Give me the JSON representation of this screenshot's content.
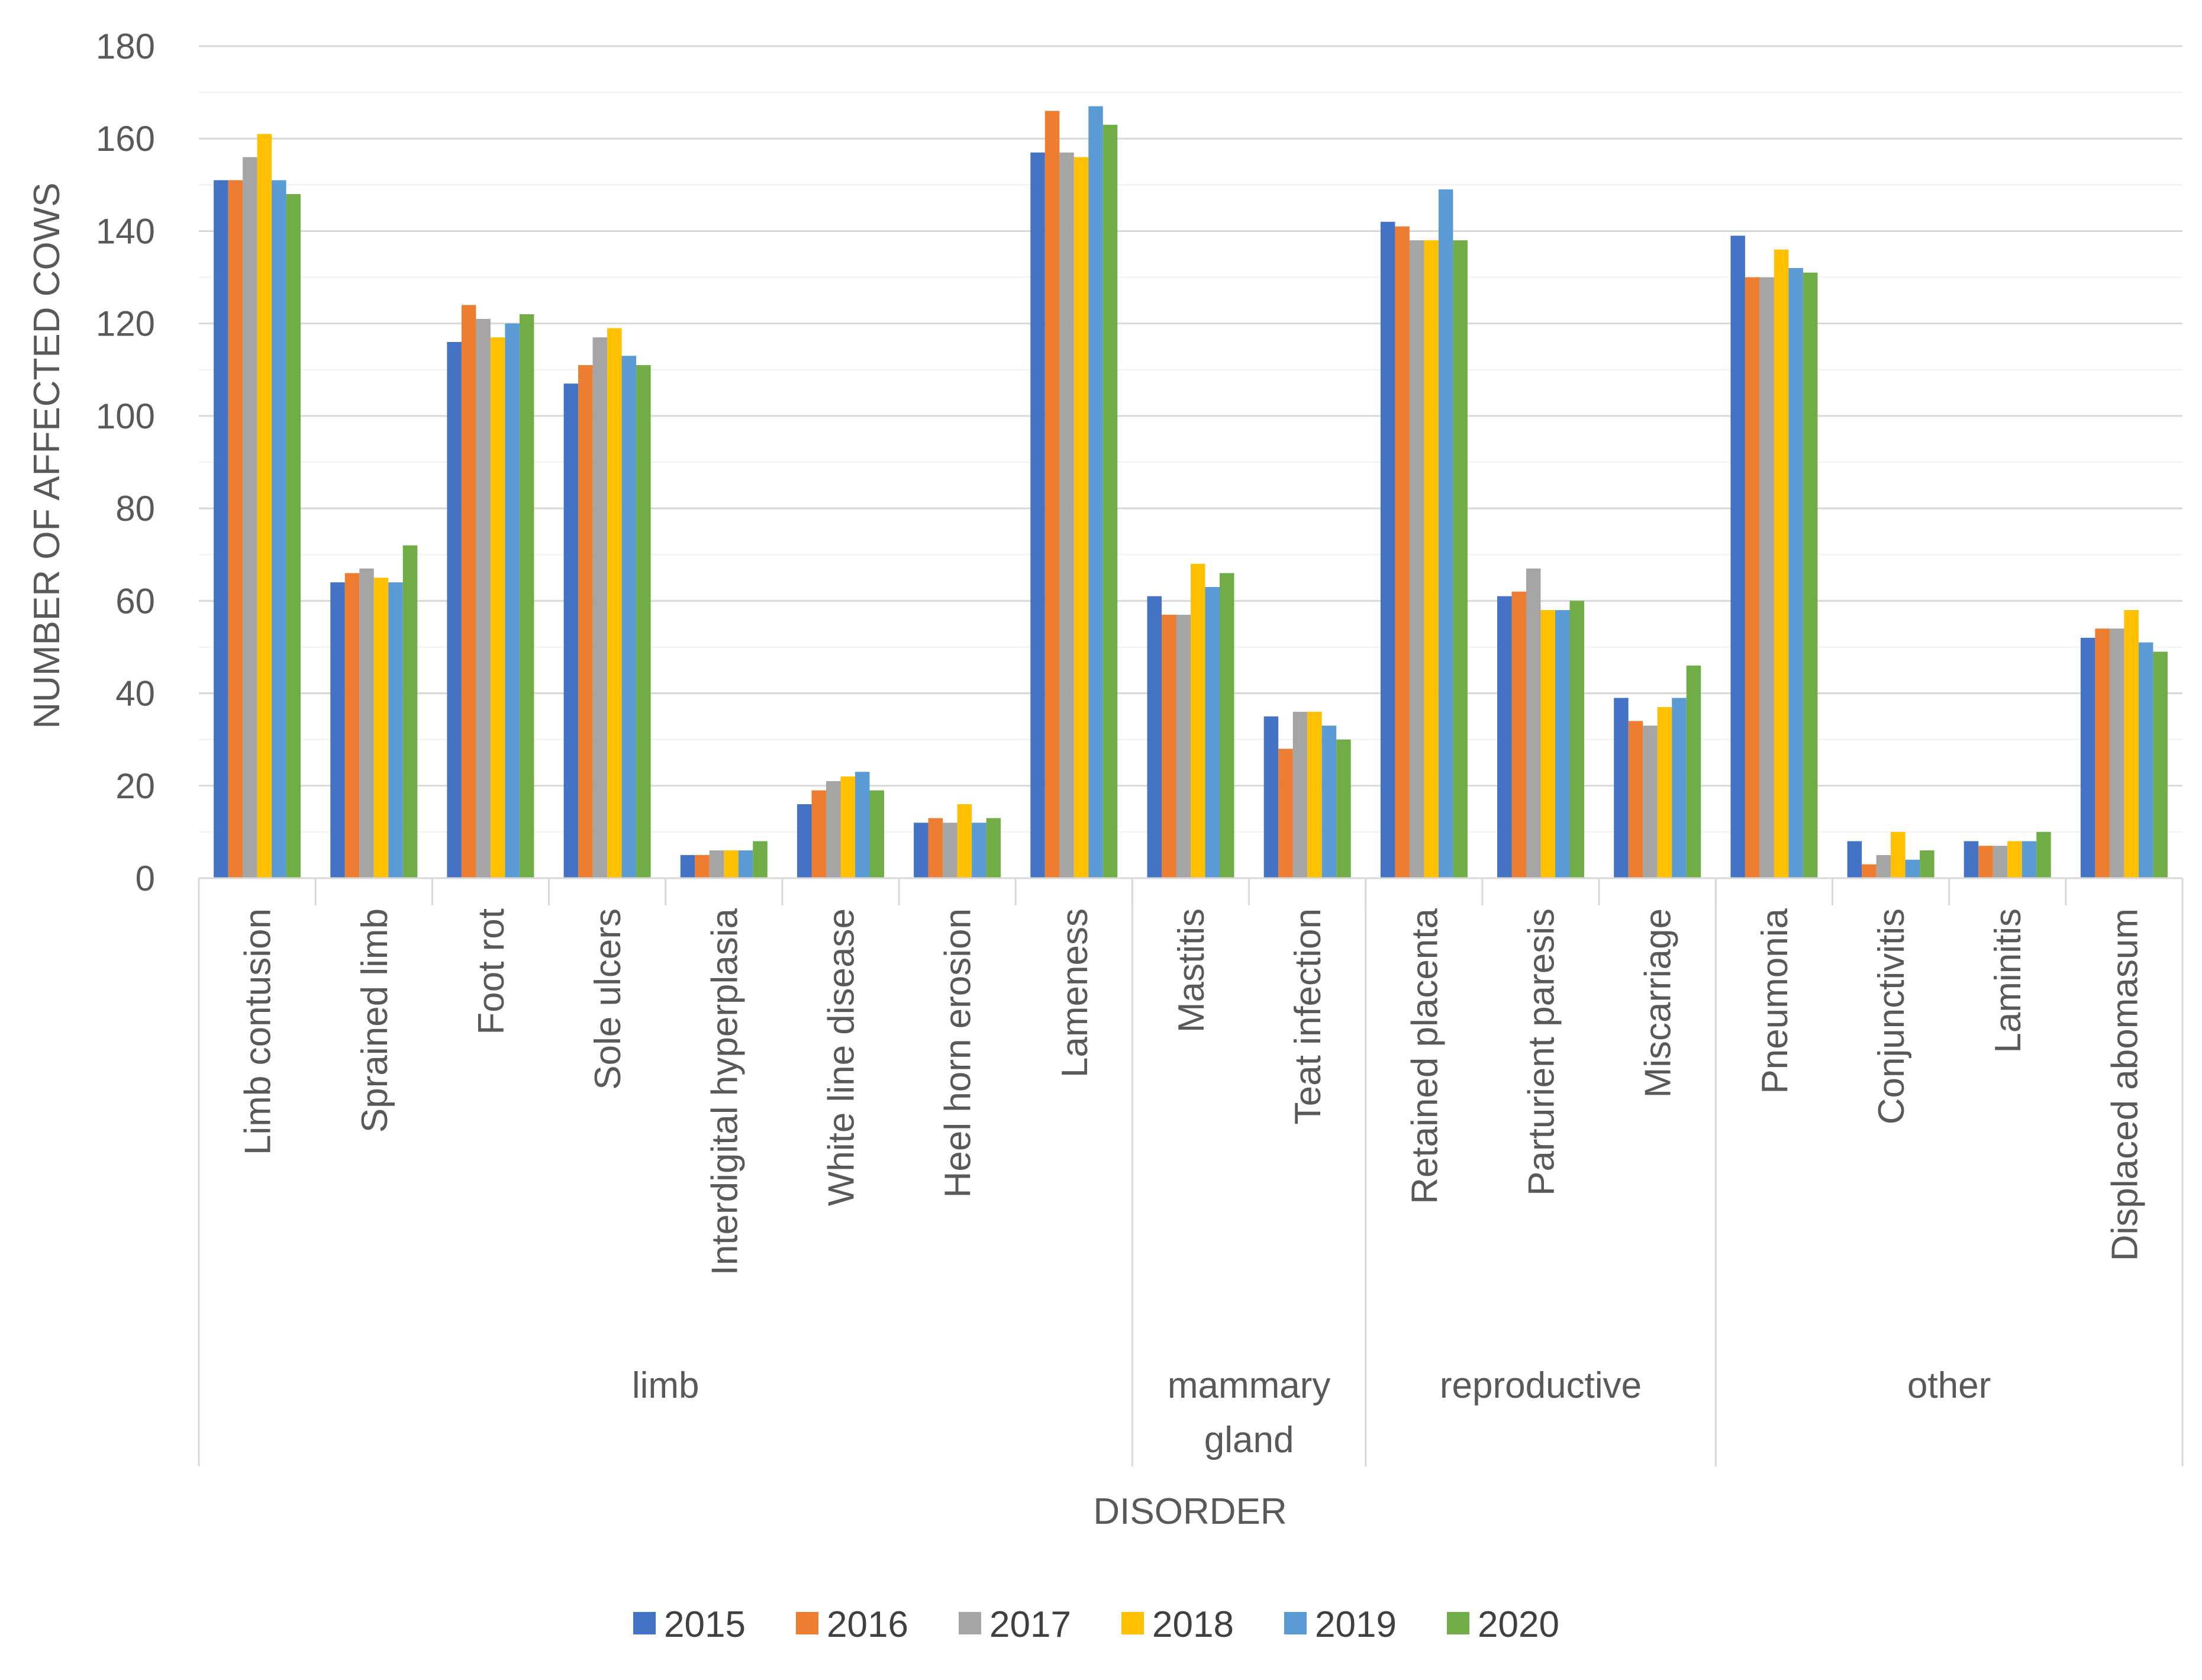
{
  "chart_data": {
    "type": "bar",
    "title": "",
    "xlabel": "DISORDER",
    "ylabel": "NUMBER OF AFFECTED COWS",
    "ylim": [
      0,
      180
    ],
    "yticks": [
      0,
      20,
      40,
      60,
      80,
      100,
      120,
      140,
      160,
      180
    ],
    "grid": true,
    "legend_position": "bottom",
    "categories": [
      "Limb contusion",
      "Sprained limb",
      "Foot rot",
      "Sole ulcers",
      "Interdigital hyperplasia",
      "White line disease",
      "Heel horn erosion",
      "Lameness",
      "Mastitis",
      "Teat infection",
      "Retained placenta",
      "Parturient paresis",
      "Miscarriage",
      "Pneumonia",
      "Conjunctivitis",
      "Laminitis",
      "Displaced abomasum"
    ],
    "groups": [
      {
        "lines": [
          "limb"
        ],
        "start": 0,
        "end": 7
      },
      {
        "lines": [
          "mammary",
          "gland"
        ],
        "start": 8,
        "end": 9
      },
      {
        "lines": [
          "reproductive"
        ],
        "start": 10,
        "end": 12
      },
      {
        "lines": [
          "other"
        ],
        "start": 13,
        "end": 16
      }
    ],
    "series": [
      {
        "name": "2015",
        "color": "#4472C4",
        "values": [
          151,
          64,
          116,
          107,
          5,
          16,
          12,
          157,
          61,
          35,
          142,
          61,
          39,
          139,
          8,
          8,
          52
        ]
      },
      {
        "name": "2016",
        "color": "#ED7D31",
        "values": [
          151,
          66,
          124,
          111,
          5,
          19,
          13,
          166,
          57,
          28,
          141,
          62,
          34,
          130,
          3,
          7,
          54
        ]
      },
      {
        "name": "2017",
        "color": "#A5A5A5",
        "values": [
          156,
          67,
          121,
          117,
          6,
          21,
          12,
          157,
          57,
          36,
          138,
          67,
          33,
          130,
          5,
          7,
          54
        ]
      },
      {
        "name": "2018",
        "color": "#FFC000",
        "values": [
          161,
          65,
          117,
          119,
          6,
          22,
          16,
          156,
          68,
          36,
          138,
          58,
          37,
          136,
          10,
          8,
          58
        ]
      },
      {
        "name": "2019",
        "color": "#5B9BD5",
        "values": [
          151,
          64,
          120,
          113,
          6,
          23,
          12,
          167,
          63,
          33,
          149,
          58,
          39,
          132,
          4,
          8,
          51
        ]
      },
      {
        "name": "2020",
        "color": "#70AD47",
        "values": [
          148,
          72,
          122,
          111,
          8,
          19,
          13,
          163,
          66,
          30,
          138,
          60,
          46,
          131,
          6,
          10,
          49
        ]
      }
    ]
  }
}
